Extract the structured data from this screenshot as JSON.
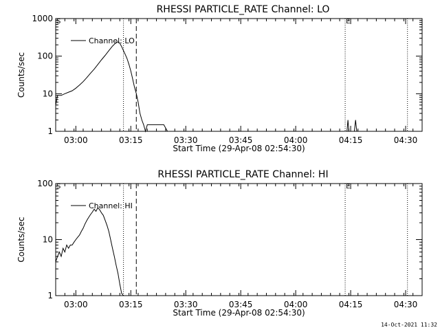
{
  "footer": {
    "timestamp": "14-Oct-2021 11:32"
  },
  "chart_data": [
    {
      "type": "line",
      "title": "RHESSI PARTICLE_RATE Channel: LO",
      "xlabel": "Start Time (29-Apr-08 02:54:30)",
      "ylabel": "Counts/sec",
      "yscale": "log",
      "xlim_minutes": [
        0,
        100
      ],
      "ylim": [
        1,
        1000
      ],
      "yticks": [
        1,
        10,
        100,
        1000
      ],
      "ytick_labels": [
        "1",
        "10",
        "100",
        "1000"
      ],
      "xticks": [
        "03:00",
        "03:15",
        "03:30",
        "03:45",
        "04:00",
        "04:15",
        "04:30"
      ],
      "markers": [
        {
          "label": "S",
          "time": "02:54:30",
          "style": "none"
        },
        {
          "label": "",
          "time": "03:13:00",
          "style": "dotted"
        },
        {
          "label": "",
          "time": "03:16:30",
          "style": "dashed"
        },
        {
          "label": "E",
          "time": "04:13:30",
          "style": "dotted"
        },
        {
          "label": "",
          "time": "04:30:30",
          "style": "dotted"
        }
      ],
      "legend": "top-left",
      "series": [
        {
          "name": "Channel: LO",
          "time": [
            "02:54:30",
            "02:55:00",
            "02:56:00",
            "02:57:00",
            "02:58:00",
            "02:59:00",
            "03:00:00",
            "03:01:00",
            "03:02:00",
            "03:03:00",
            "03:04:00",
            "03:05:00",
            "03:06:00",
            "03:07:00",
            "03:08:00",
            "03:09:00",
            "03:10:00",
            "03:11:00",
            "03:11:30",
            "03:12:00",
            "03:12:30",
            "03:13:00",
            "03:13:30",
            "03:14:00",
            "03:14:30",
            "03:15:00",
            "03:15:30",
            "03:16:00",
            "03:16:30",
            "03:17:00",
            "03:17:30",
            "03:18:00",
            "03:18:30",
            "03:19:00",
            "03:19:30",
            "03:20:00",
            "03:21:00",
            "03:22:00",
            "03:23:00",
            "03:24:00",
            "03:25:00",
            "04:14:00",
            "04:14:15",
            "04:14:30",
            "04:16:00",
            "04:16:20",
            "04:16:40"
          ],
          "values": [
            5,
            9,
            9,
            10,
            11,
            12,
            14,
            17,
            21,
            27,
            35,
            45,
            60,
            80,
            105,
            140,
            185,
            230,
            240,
            220,
            180,
            140,
            110,
            85,
            60,
            40,
            25,
            15,
            10,
            6,
            3,
            2,
            1.5,
            1,
            1.5,
            1.5,
            1.5,
            1.5,
            1.5,
            1.5,
            1,
            1,
            2,
            1,
            1,
            2,
            1
          ]
        }
      ]
    },
    {
      "type": "line",
      "title": "RHESSI PARTICLE_RATE Channel: HI",
      "xlabel": "Start Time (29-Apr-08 02:54:30)",
      "ylabel": "Counts/sec",
      "yscale": "log",
      "xlim_minutes": [
        0,
        100
      ],
      "ylim": [
        1,
        100
      ],
      "yticks": [
        1,
        10,
        100
      ],
      "ytick_labels": [
        "1",
        "10",
        "100"
      ],
      "xticks": [
        "03:00",
        "03:15",
        "03:30",
        "03:45",
        "04:00",
        "04:15",
        "04:30"
      ],
      "markers": [
        {
          "label": "S",
          "time": "02:54:30",
          "style": "none"
        },
        {
          "label": "",
          "time": "03:13:00",
          "style": "dotted"
        },
        {
          "label": "",
          "time": "03:16:30",
          "style": "dashed"
        },
        {
          "label": "E",
          "time": "04:13:30",
          "style": "dotted"
        },
        {
          "label": "",
          "time": "04:30:30",
          "style": "dotted"
        }
      ],
      "legend": "top-left",
      "series": [
        {
          "name": "Channel: HI",
          "time": [
            "02:54:30",
            "02:55:00",
            "02:55:30",
            "02:56:00",
            "02:56:30",
            "02:57:00",
            "02:57:30",
            "02:58:00",
            "02:58:30",
            "02:59:00",
            "02:59:30",
            "03:00:00",
            "03:00:30",
            "03:01:00",
            "03:01:30",
            "03:02:00",
            "03:02:30",
            "03:03:00",
            "03:03:30",
            "03:04:00",
            "03:04:30",
            "03:05:00",
            "03:05:30",
            "03:06:00",
            "03:06:30",
            "03:07:00",
            "03:07:30",
            "03:08:00",
            "03:08:30",
            "03:09:00",
            "03:09:30",
            "03:10:00",
            "03:10:30",
            "03:11:00",
            "03:11:30",
            "03:12:00",
            "03:12:30",
            "03:13:00"
          ],
          "values": [
            4,
            5,
            6,
            5,
            7,
            6,
            8,
            7,
            8,
            8,
            9,
            10,
            11,
            12,
            14,
            16,
            19,
            22,
            25,
            28,
            31,
            35,
            32,
            37,
            34,
            30,
            27,
            22,
            18,
            14,
            10,
            7,
            5,
            3.5,
            2.5,
            1.6,
            1.1,
            1
          ]
        }
      ]
    }
  ]
}
